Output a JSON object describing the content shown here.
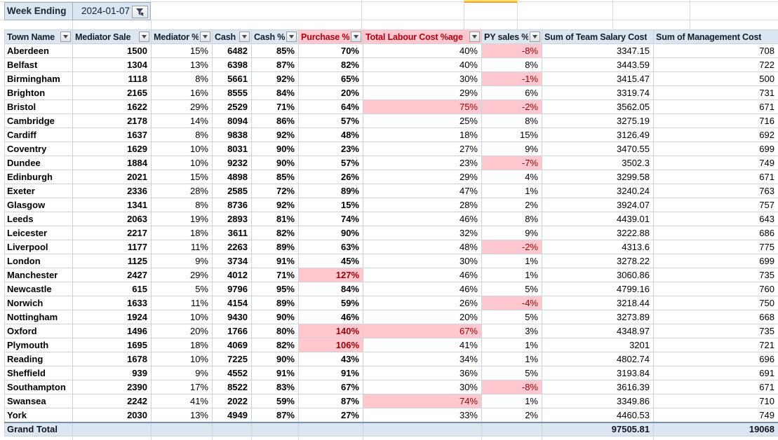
{
  "filter_bar": {
    "label": "Week Ending",
    "value": "2024-01-07",
    "filter_icon": "funnel-icon"
  },
  "table": {
    "columns": [
      {
        "key": "town",
        "label": "Town Name",
        "filter": true,
        "alert": false,
        "bold": true
      },
      {
        "key": "mediator_sale",
        "label": "Mediator Sale",
        "filter": true,
        "alert": false,
        "bold": true
      },
      {
        "key": "mediator_pct",
        "label": "Mediator %",
        "filter": true,
        "alert": false,
        "bold": false
      },
      {
        "key": "cash",
        "label": "Cash",
        "filter": true,
        "alert": false,
        "bold": true
      },
      {
        "key": "cash_pct",
        "label": "Cash %",
        "filter": true,
        "alert": false,
        "bold": true
      },
      {
        "key": "purchase_pct",
        "label": "Purchase %",
        "filter": true,
        "alert": true,
        "bold": true
      },
      {
        "key": "labour_pct",
        "label": "Total Labour Cost %age",
        "filter": true,
        "alert": true,
        "bold": false
      },
      {
        "key": "py_sales_pct",
        "label": "PY sales %",
        "filter": true,
        "alert": false,
        "bold": false
      },
      {
        "key": "team_salary",
        "label": "Sum of Team Salary Cost",
        "filter": false,
        "alert": false,
        "bold": false
      },
      {
        "key": "management_cost",
        "label": "Sum of Management Cost",
        "filter": false,
        "alert": false,
        "bold": false
      }
    ],
    "rows": [
      {
        "cells": [
          "Aberdeen",
          "1500",
          "15%",
          "6482",
          "85%",
          "70%",
          "40%",
          "-8%",
          "3347.15",
          "708"
        ],
        "pink": [
          7
        ]
      },
      {
        "cells": [
          "Belfast",
          "1304",
          "13%",
          "6398",
          "87%",
          "82%",
          "40%",
          "8%",
          "3443.59",
          "722"
        ],
        "pink": []
      },
      {
        "cells": [
          "Birmingham",
          "1118",
          "8%",
          "5661",
          "92%",
          "65%",
          "30%",
          "-1%",
          "3415.47",
          "500"
        ],
        "pink": [
          7
        ]
      },
      {
        "cells": [
          "Brighton",
          "2165",
          "16%",
          "8555",
          "84%",
          "20%",
          "29%",
          "6%",
          "3319.74",
          "731"
        ],
        "pink": []
      },
      {
        "cells": [
          "Bristol",
          "1622",
          "29%",
          "2529",
          "71%",
          "64%",
          "75%",
          "-2%",
          "3562.05",
          "671"
        ],
        "pink": [
          6,
          7
        ]
      },
      {
        "cells": [
          "Cambridge",
          "2178",
          "14%",
          "8094",
          "86%",
          "57%",
          "25%",
          "8%",
          "3275.19",
          "716"
        ],
        "pink": []
      },
      {
        "cells": [
          "Cardiff",
          "1637",
          "8%",
          "9838",
          "92%",
          "48%",
          "18%",
          "15%",
          "3126.49",
          "692"
        ],
        "pink": []
      },
      {
        "cells": [
          "Coventry",
          "1629",
          "10%",
          "8031",
          "90%",
          "23%",
          "27%",
          "9%",
          "3470.55",
          "699"
        ],
        "pink": []
      },
      {
        "cells": [
          "Dundee",
          "1884",
          "10%",
          "9232",
          "90%",
          "57%",
          "23%",
          "-7%",
          "3502.3",
          "749"
        ],
        "pink": [
          7
        ]
      },
      {
        "cells": [
          "Edinburgh",
          "2021",
          "15%",
          "4898",
          "85%",
          "26%",
          "29%",
          "4%",
          "3299.58",
          "671"
        ],
        "pink": []
      },
      {
        "cells": [
          "Exeter",
          "2336",
          "28%",
          "2585",
          "72%",
          "89%",
          "47%",
          "1%",
          "3240.24",
          "763"
        ],
        "pink": []
      },
      {
        "cells": [
          "Glasgow",
          "1341",
          "8%",
          "8736",
          "92%",
          "15%",
          "28%",
          "2%",
          "3924.07",
          "757"
        ],
        "pink": []
      },
      {
        "cells": [
          "Leeds",
          "2063",
          "19%",
          "2893",
          "81%",
          "74%",
          "46%",
          "8%",
          "4439.01",
          "643"
        ],
        "pink": []
      },
      {
        "cells": [
          "Leicester",
          "2217",
          "18%",
          "3611",
          "82%",
          "90%",
          "32%",
          "9%",
          "3222.88",
          "686"
        ],
        "pink": []
      },
      {
        "cells": [
          "Liverpool",
          "1177",
          "11%",
          "2263",
          "89%",
          "63%",
          "48%",
          "-2%",
          "4313.6",
          "775"
        ],
        "pink": [
          7
        ]
      },
      {
        "cells": [
          "London",
          "1125",
          "9%",
          "3734",
          "91%",
          "45%",
          "30%",
          "1%",
          "3278.22",
          "699"
        ],
        "pink": []
      },
      {
        "cells": [
          "Manchester",
          "2427",
          "29%",
          "4012",
          "71%",
          "127%",
          "46%",
          "1%",
          "3060.86",
          "735"
        ],
        "pink": [
          5
        ]
      },
      {
        "cells": [
          "Newcastle",
          "615",
          "5%",
          "9796",
          "95%",
          "84%",
          "46%",
          "5%",
          "4799.16",
          "760"
        ],
        "pink": []
      },
      {
        "cells": [
          "Norwich",
          "1633",
          "11%",
          "4154",
          "89%",
          "59%",
          "26%",
          "-4%",
          "3218.44",
          "750"
        ],
        "pink": [
          7
        ]
      },
      {
        "cells": [
          "Nottingham",
          "1924",
          "10%",
          "9430",
          "90%",
          "46%",
          "20%",
          "5%",
          "3273.89",
          "668"
        ],
        "pink": []
      },
      {
        "cells": [
          "Oxford",
          "1496",
          "20%",
          "1766",
          "80%",
          "140%",
          "67%",
          "3%",
          "4348.97",
          "735"
        ],
        "pink": [
          5,
          6
        ]
      },
      {
        "cells": [
          "Plymouth",
          "1695",
          "18%",
          "4069",
          "82%",
          "106%",
          "41%",
          "1%",
          "3201",
          "721"
        ],
        "pink": [
          5
        ]
      },
      {
        "cells": [
          "Reading",
          "1678",
          "10%",
          "7225",
          "90%",
          "43%",
          "34%",
          "1%",
          "4802.74",
          "696"
        ],
        "pink": []
      },
      {
        "cells": [
          "Sheffield",
          "939",
          "9%",
          "4552",
          "91%",
          "91%",
          "36%",
          "5%",
          "3193.84",
          "691"
        ],
        "pink": []
      },
      {
        "cells": [
          "Southampton",
          "2390",
          "17%",
          "8522",
          "83%",
          "67%",
          "30%",
          "-8%",
          "3616.39",
          "671"
        ],
        "pink": [
          7
        ]
      },
      {
        "cells": [
          "Swansea",
          "2242",
          "41%",
          "2022",
          "59%",
          "87%",
          "74%",
          "1%",
          "3349.86",
          "710"
        ],
        "pink": [
          6
        ]
      },
      {
        "cells": [
          "York",
          "2030",
          "13%",
          "4949",
          "87%",
          "27%",
          "33%",
          "2%",
          "4460.53",
          "749"
        ],
        "pink": []
      }
    ],
    "grand_total": {
      "cells": [
        "Grand Total",
        "",
        "",
        "",
        "",
        "",
        "",
        "",
        "97505.81",
        "19068"
      ],
      "pink": []
    }
  },
  "colors": {
    "header_fill": "#DCE6F1",
    "alert_fill": "#FFC7CE",
    "alert_text": "#9C0006",
    "grand_total_fill": "#DCE6F1",
    "highlight_yellow": "#FFE265"
  }
}
